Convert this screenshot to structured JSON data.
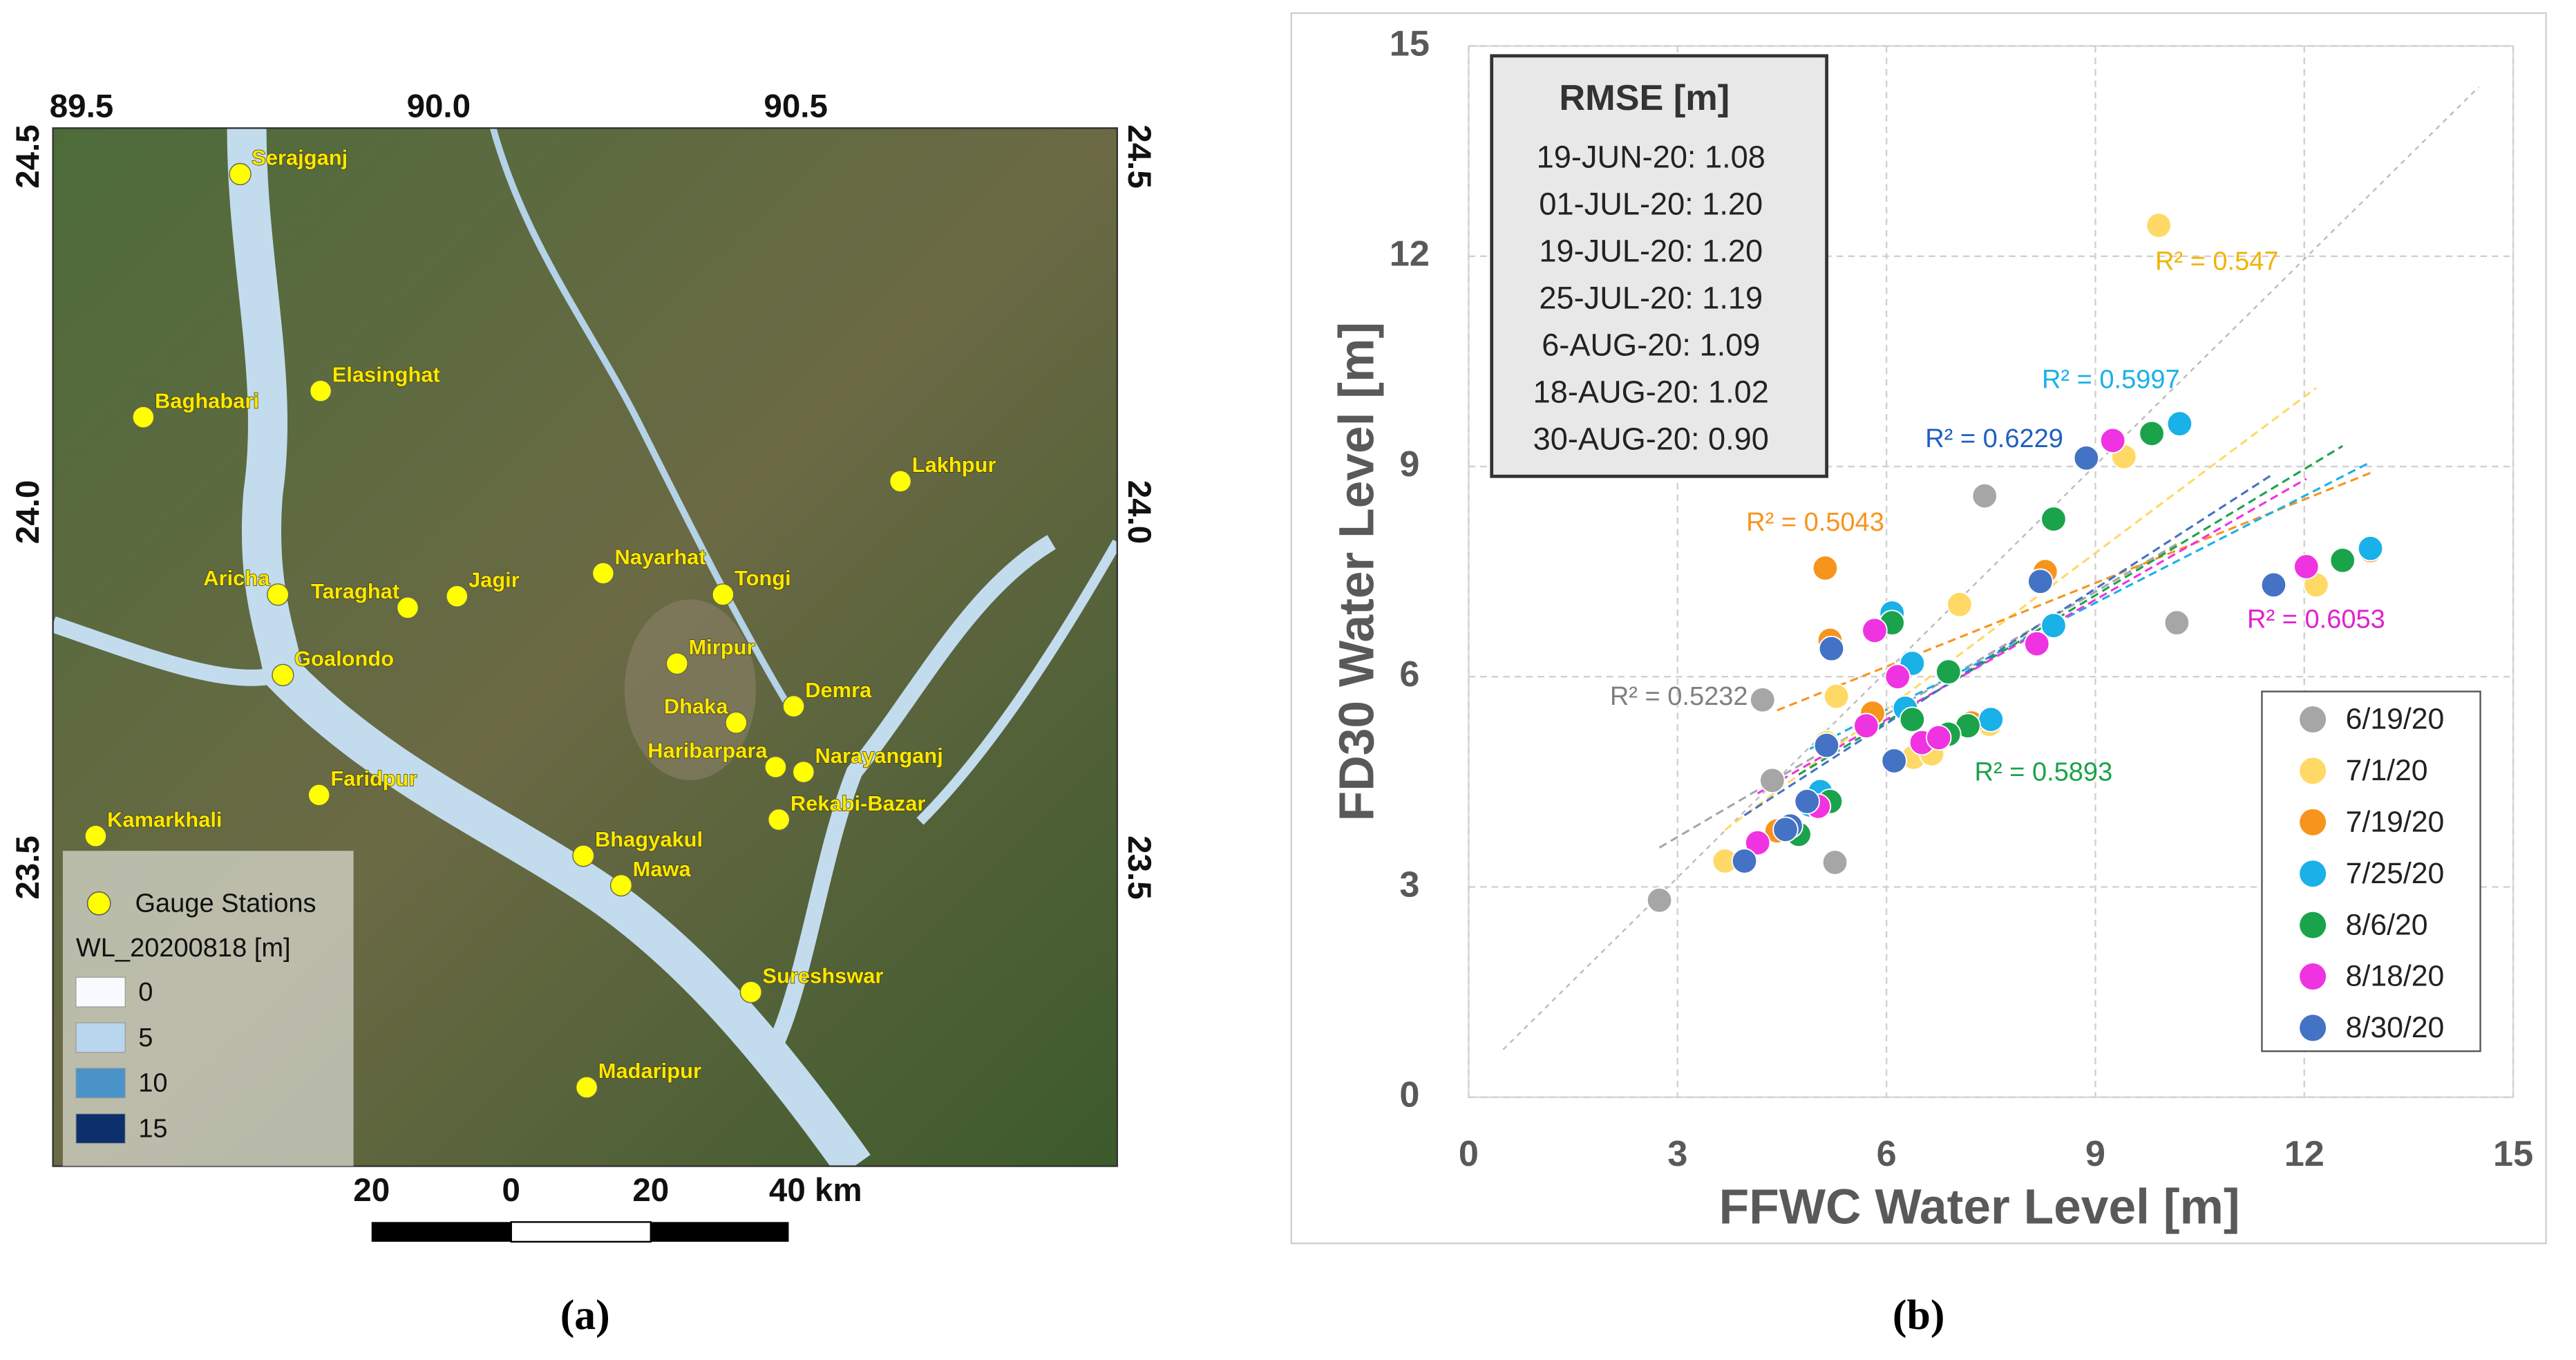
{
  "map": {
    "lon_ticks": [
      89.5,
      {
        "value": 90,
        "label": "90.0"
      },
      90.5
    ],
    "lat_ticks": [
      24.5,
      {
        "value": 24,
        "label": "24.0"
      },
      23.5
    ],
    "lonlim": [
      89.46,
      90.95
    ],
    "latlim": [
      23.08,
      24.54
    ],
    "stations": [
      "Serajganj",
      "Elasinghat",
      "Baghabari",
      "Lakhpur",
      "Aricha",
      "Taraghat",
      "Jagir",
      "Nayarhat",
      "Tongi",
      "Goalondo",
      "Mirpur",
      "Demra",
      "Dhaka",
      "Haribarpara",
      "Narayanganj",
      "Faridpur",
      "Rekabi-Bazar",
      "Kamarkhali",
      "Bhagyakul",
      "Mawa",
      "Sureshswar",
      "Madaripur"
    ],
    "legend": {
      "marker_label": "Gauge Stations",
      "title": "WL_20200818 [m]",
      "classes": [
        {
          "label": "0",
          "color": "#f7fbff"
        },
        {
          "label": "5",
          "color": "#b9d6ef"
        },
        {
          "label": "10",
          "color": "#4a93c9"
        },
        {
          "label": "15",
          "color": "#0d2f6b"
        }
      ]
    },
    "scale_bar": [
      "20",
      "0",
      "20",
      "40 km"
    ]
  },
  "chart_data": {
    "type": "scatter",
    "x_label": "FFWC Water Level [m]",
    "y_label": "FD30 Water Level [m]",
    "xlim": [
      0,
      15
    ],
    "ylim": [
      0,
      15
    ],
    "xticks": [
      0,
      3,
      6,
      9,
      12,
      15
    ],
    "yticks": [
      0,
      3,
      6,
      9,
      12,
      15
    ],
    "grid": true,
    "legend_position": "lower right",
    "rmse_box": {
      "title": "RMSE [m]",
      "lines": [
        "19-JUN-20: 1.08",
        "01-JUL-20: 1.20",
        "19-JUL-20: 1.20",
        "25-JUL-20: 1.19",
        "6-AUG-20: 1.09",
        "18-AUG-20: 1.02",
        "30-AUG-20: 0.90"
      ]
    },
    "annotations": [
      {
        "text": "R² = 0.5232",
        "color": "#7f7f7f"
      },
      {
        "text": "R² = 0.547",
        "color": "#f0b400"
      },
      {
        "text": "R² = 0.5043",
        "color": "#f7941d"
      },
      {
        "text": "R² = 0.5997",
        "color": "#1ab0e8"
      },
      {
        "text": "R² = 0.5893",
        "color": "#1aa34a"
      },
      {
        "text": "R² = 0.6053",
        "color": "#e020d0"
      },
      {
        "text": "R² = 0.6229",
        "color": "#1f5fbf"
      }
    ],
    "series": [
      {
        "name": "6/19/20",
        "color": "#a6a6a6",
        "x": [
          2.74,
          4.36,
          4.22,
          5.26,
          7.41,
          10.17
        ],
        "values": [
          2.81,
          4.52,
          5.67,
          3.35,
          8.58,
          6.77
        ]
      },
      {
        "name": "7/1/20",
        "color": "#ffd966",
        "x": [
          9.91,
          3.68,
          5.28,
          7.05,
          9.41,
          12.17,
          6.39,
          6.65,
          7.48,
          5.14
        ],
        "values": [
          12.44,
          3.37,
          5.72,
          7.03,
          9.14,
          7.31,
          4.85,
          4.9,
          5.32,
          5.06
        ]
      },
      {
        "name": "7/19/20",
        "color": "#f7941d",
        "x": [
          5.12,
          5.19,
          5.8,
          8.28,
          10.19,
          12.95,
          4.43,
          7.22
        ],
        "values": [
          7.55,
          6.52,
          5.48,
          7.5,
          9.61,
          7.8,
          3.8,
          5.34
        ]
      },
      {
        "name": "7/25/20",
        "color": "#1ab0e8",
        "x": [
          6.08,
          6.37,
          6.27,
          8.4,
          10.21,
          12.95,
          5.05,
          7.5,
          4.9
        ],
        "values": [
          6.91,
          6.19,
          5.55,
          6.73,
          9.61,
          7.83,
          4.36,
          5.39,
          4.17
        ]
      },
      {
        "name": "8/6/20",
        "color": "#1aa34a",
        "x": [
          6.08,
          8.4,
          9.81,
          12.55,
          6.37,
          6.89,
          5.19,
          4.74,
          7.17,
          6.89
        ],
        "values": [
          6.77,
          8.25,
          9.47,
          7.66,
          5.39,
          6.07,
          4.22,
          3.75,
          5.3,
          5.18
        ]
      },
      {
        "name": "8/18/20",
        "color": "#f033e0",
        "x": [
          5.83,
          6.16,
          8.16,
          9.25,
          12.03,
          5.71,
          6.51,
          5.02,
          4.15,
          6.75
        ],
        "values": [
          6.66,
          6.0,
          6.47,
          9.37,
          7.57,
          5.3,
          5.06,
          4.15,
          3.63,
          5.13
        ]
      },
      {
        "name": "8/30/20",
        "color": "#4472c4",
        "x": [
          5.21,
          8.87,
          8.21,
          11.56,
          3.96,
          4.62,
          5.14,
          6.11,
          4.86,
          4.55
        ],
        "values": [
          6.4,
          9.12,
          7.36,
          7.31,
          3.37,
          3.87,
          5.02,
          4.8,
          4.22,
          3.82
        ]
      }
    ]
  },
  "captions": [
    "(a)",
    "(b)"
  ]
}
